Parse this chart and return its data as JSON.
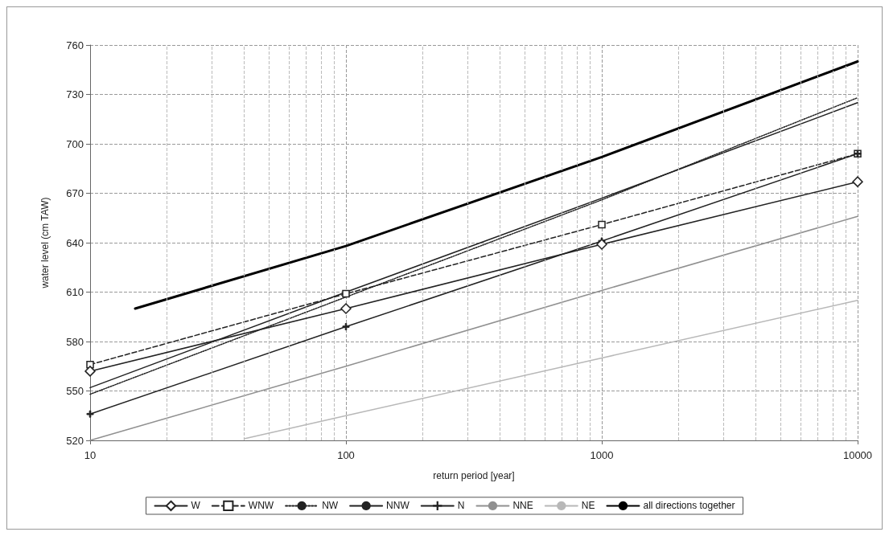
{
  "chart_data": {
    "type": "line",
    "xlabel": "return period [year]",
    "ylabel": "water level (cm TAW)",
    "log": "x",
    "xlim": [
      10,
      10000
    ],
    "xticks": [
      10,
      100,
      1000,
      10000
    ],
    "ylim": [
      520,
      760
    ],
    "yticks": [
      520,
      550,
      580,
      610,
      640,
      670,
      700,
      730,
      760
    ],
    "grid": true,
    "legend": "bottom",
    "series": [
      {
        "name": "W",
        "color": "#222222",
        "marker": "diamond",
        "line_style": "solid",
        "x": [
          10,
          100,
          1000,
          10000
        ],
        "values": [
          562,
          600,
          639,
          677
        ]
      },
      {
        "name": "WNW",
        "color": "#222222",
        "marker": "square",
        "line_style": "dashed",
        "x": [
          10,
          100,
          1000,
          10000
        ],
        "values": [
          566,
          609,
          651,
          694
        ]
      },
      {
        "name": "NW",
        "color": "#222222",
        "marker": "none",
        "line_style": "dotted",
        "x": [
          10,
          100,
          1000,
          10000
        ],
        "values": [
          548,
          607,
          666,
          728
        ]
      },
      {
        "name": "NNW",
        "color": "#222222",
        "marker": "none",
        "line_style": "solid",
        "x": [
          10,
          100,
          1000,
          10000
        ],
        "values": [
          552,
          610,
          667,
          725
        ]
      },
      {
        "name": "N",
        "color": "#222222",
        "marker": "cross",
        "line_style": "solid",
        "x": [
          10,
          100,
          1000,
          10000
        ],
        "values": [
          536,
          589,
          641,
          694
        ]
      },
      {
        "name": "NNE",
        "color": "#909090",
        "marker": "none",
        "line_style": "solid",
        "x": [
          10,
          100,
          1000,
          10000
        ],
        "values": [
          520,
          565,
          611,
          656
        ]
      },
      {
        "name": "NE",
        "color": "#b8b8b8",
        "marker": "none",
        "line_style": "solid",
        "x": [
          40,
          100,
          1000,
          10000
        ],
        "values": [
          521,
          535,
          570,
          605
        ]
      },
      {
        "name": "all directions together",
        "color": "#000000",
        "marker": "none",
        "line_style": "solid",
        "x": [
          15,
          100,
          1000,
          10000
        ],
        "values": [
          600,
          638,
          692,
          750
        ]
      }
    ]
  }
}
